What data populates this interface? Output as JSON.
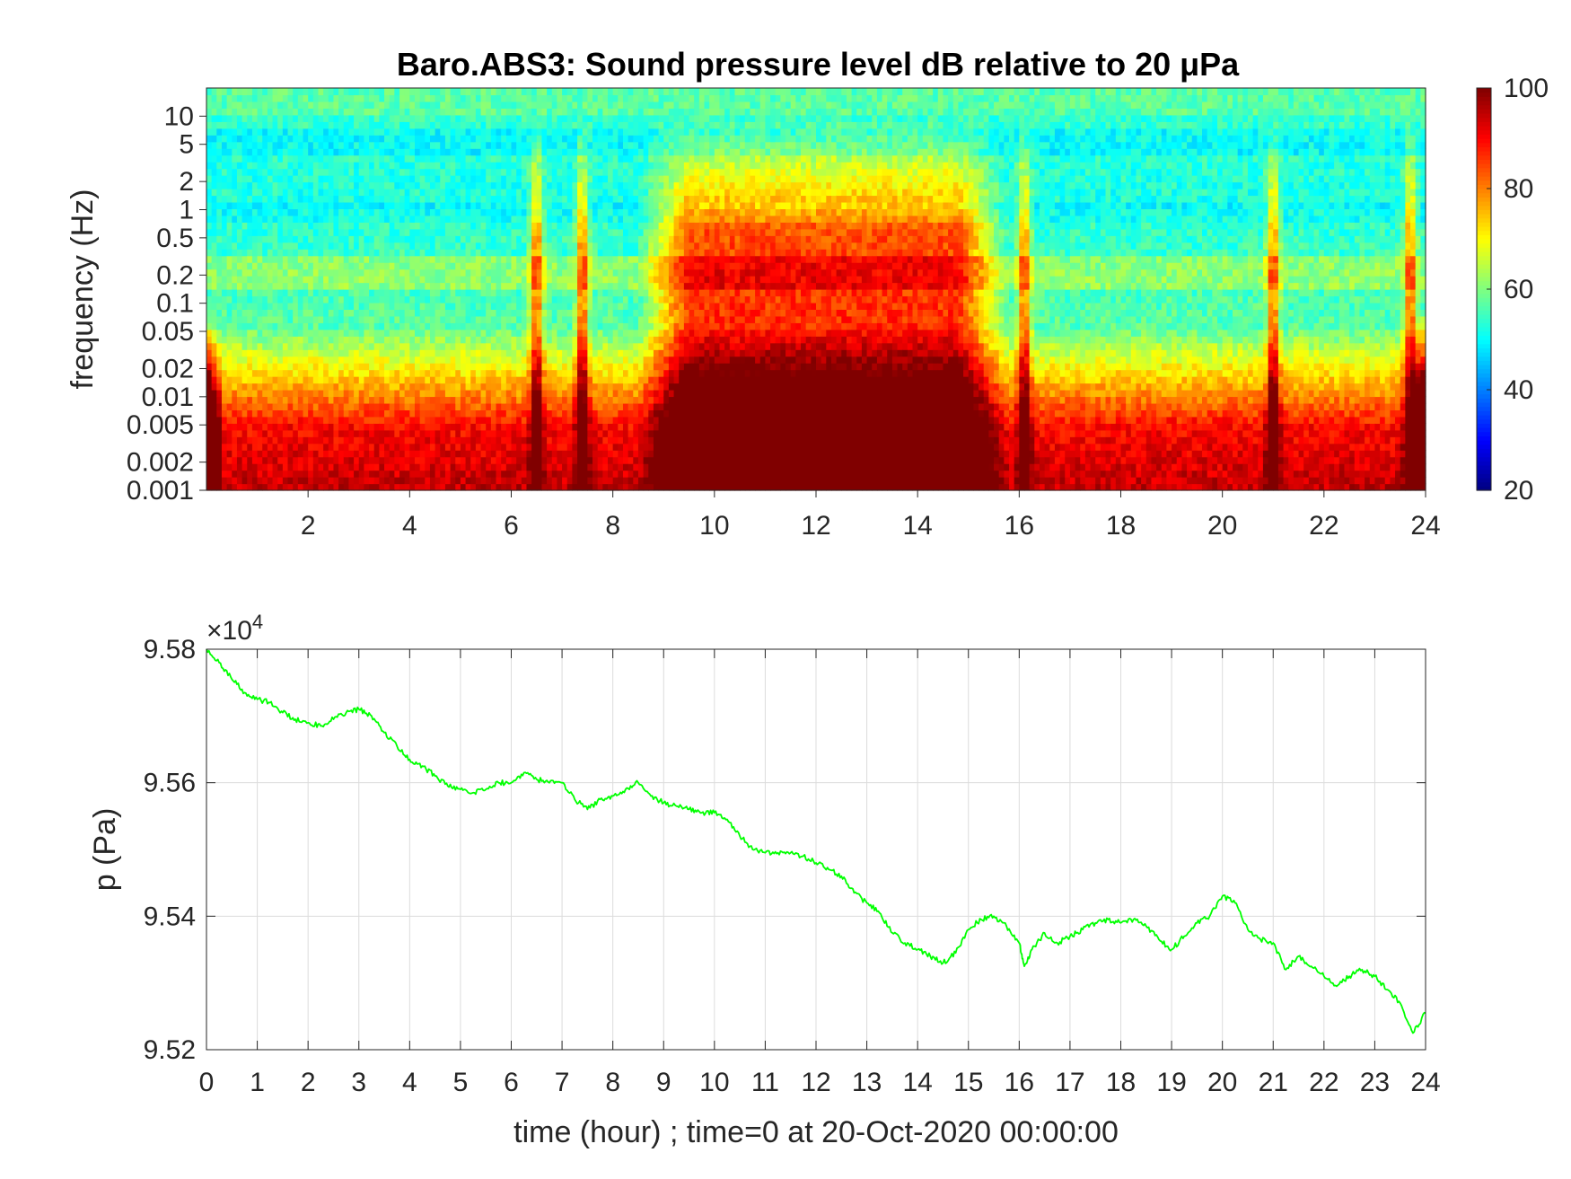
{
  "figure": {
    "background": "#ffffff"
  },
  "chart_data": [
    {
      "type": "heatmap",
      "title": "Baro.ABS3: Sound pressure level dB relative to 20 μPa",
      "ylabel": "frequency (Hz)",
      "xlabel": "",
      "xlim": [
        0,
        24
      ],
      "ylim": [
        0.001,
        20
      ],
      "yscale": "log",
      "xticks": [
        2,
        4,
        6,
        8,
        10,
        12,
        14,
        16,
        18,
        20,
        22,
        24
      ],
      "yticks": [
        0.001,
        0.002,
        0.005,
        0.01,
        0.02,
        0.05,
        0.1,
        0.2,
        0.5,
        1,
        2,
        5,
        10
      ],
      "ytick_labels": [
        "0.001",
        "0.002",
        "0.005",
        "0.01",
        "0.02",
        "0.05",
        "0.1",
        "0.2",
        "0.5",
        "1",
        "2",
        "5",
        "10"
      ],
      "colormap": "jet",
      "colorbar": {
        "clim": [
          20,
          100
        ],
        "ticks": [
          20,
          40,
          60,
          80,
          100
        ]
      },
      "features": {
        "active_window_hours": [
          8.5,
          15.8
        ],
        "burst_hours": [
          6.5,
          7.4,
          16.1,
          21.0,
          23.7
        ],
        "edge_strong_hours": [
          0.0,
          24.0
        ],
        "noise_bands_hz": [
          0.2,
          1,
          5
        ]
      }
    },
    {
      "type": "line",
      "title": "",
      "xlabel": "time (hour) ; time=0 at 20-Oct-2020 00:00:00",
      "ylabel": "p (Pa)",
      "xlim": [
        0,
        24
      ],
      "ylim": [
        95200,
        95800
      ],
      "xticks": [
        0,
        1,
        2,
        3,
        4,
        5,
        6,
        7,
        8,
        9,
        10,
        11,
        12,
        13,
        14,
        15,
        16,
        17,
        18,
        19,
        20,
        21,
        22,
        23,
        24
      ],
      "yticks": [
        95200,
        95400,
        95600,
        95800
      ],
      "ytick_labels": [
        "9.52",
        "9.54",
        "9.56",
        "9.58"
      ],
      "exponent_label": "×10",
      "exponent_power": "4",
      "grid": true,
      "line_color": "#00ff00",
      "series": [
        {
          "x": [
            0,
            0.25,
            0.5,
            0.75,
            1.0,
            1.25,
            1.5,
            1.75,
            2.0,
            2.25,
            2.5,
            2.75,
            3.0,
            3.25,
            3.5,
            3.75,
            4.0,
            4.25,
            4.5,
            4.75,
            5.0,
            5.25,
            5.5,
            5.75,
            6.0,
            6.25,
            6.5,
            6.75,
            7.0,
            7.25,
            7.5,
            7.75,
            8.0,
            8.25,
            8.5,
            8.75,
            9.0,
            9.25,
            9.5,
            9.75,
            10.0,
            10.25,
            10.5,
            10.75,
            11.0,
            11.25,
            11.5,
            11.75,
            12.0,
            12.25,
            12.5,
            12.75,
            13.0,
            13.25,
            13.5,
            13.75,
            14.0,
            14.25,
            14.5,
            14.75,
            15.0,
            15.25,
            15.5,
            15.75,
            16.0,
            16.1,
            16.25,
            16.5,
            16.75,
            17.0,
            17.25,
            17.5,
            17.75,
            18.0,
            18.25,
            18.5,
            18.75,
            19.0,
            19.25,
            19.5,
            19.75,
            20.0,
            20.25,
            20.5,
            20.75,
            21.0,
            21.25,
            21.5,
            21.75,
            22.0,
            22.25,
            22.5,
            22.75,
            23.0,
            23.25,
            23.5,
            23.75,
            24.0
          ],
          "y": [
            95800,
            95780,
            95755,
            95735,
            95725,
            95720,
            95705,
            95695,
            95690,
            95685,
            95695,
            95705,
            95710,
            95700,
            95675,
            95655,
            95635,
            95625,
            95610,
            95595,
            95590,
            95585,
            95590,
            95600,
            95600,
            95615,
            95605,
            95600,
            95600,
            95575,
            95560,
            95575,
            95580,
            95590,
            95600,
            95580,
            95570,
            95565,
            95560,
            95555,
            95555,
            95545,
            95520,
            95500,
            95495,
            95495,
            95495,
            95490,
            95480,
            95470,
            95460,
            95435,
            95420,
            95405,
            95375,
            95360,
            95350,
            95340,
            95330,
            95345,
            95380,
            95395,
            95400,
            95385,
            95360,
            95325,
            95350,
            95375,
            95360,
            95370,
            95380,
            95390,
            95395,
            95390,
            95395,
            95385,
            95365,
            95350,
            95370,
            95390,
            95400,
            95430,
            95420,
            95380,
            95365,
            95360,
            95320,
            95340,
            95325,
            95310,
            95295,
            95310,
            95320,
            95310,
            95290,
            95270,
            95225,
            95255
          ]
        }
      ]
    }
  ]
}
